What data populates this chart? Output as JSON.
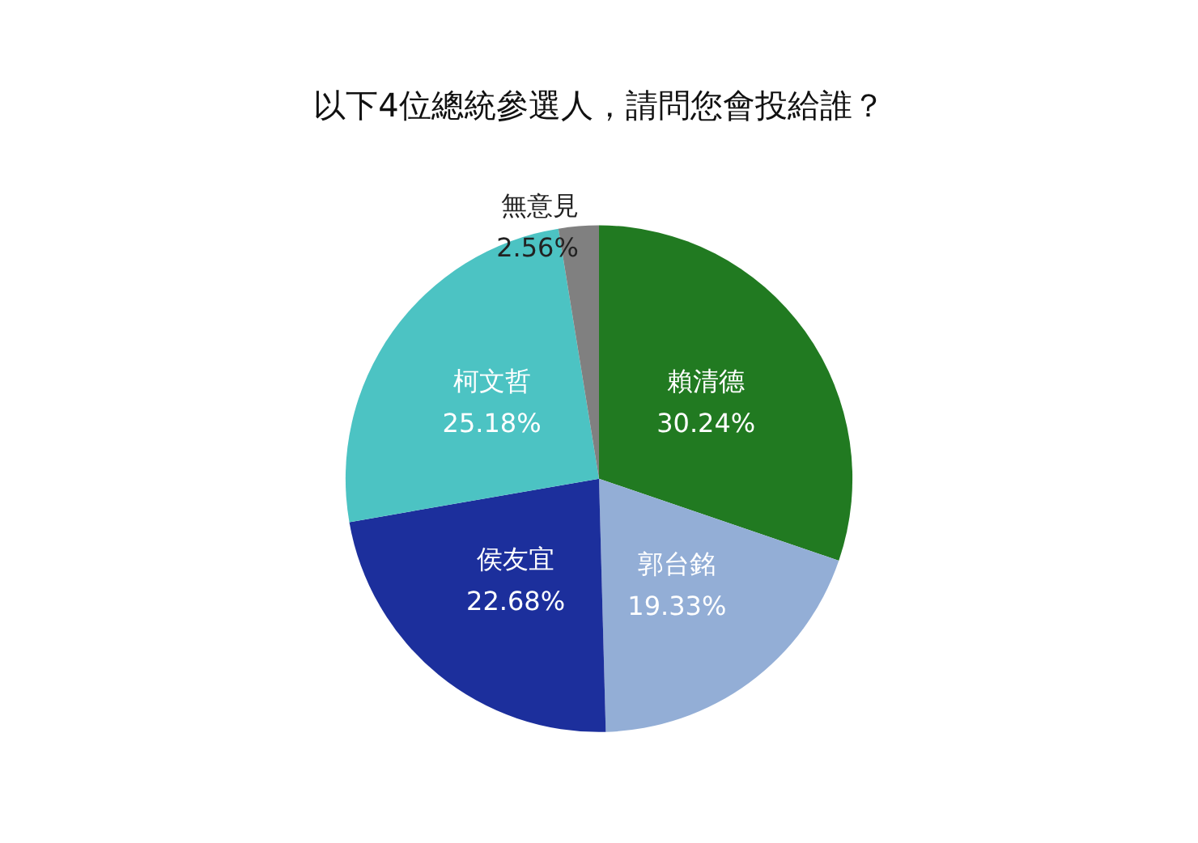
{
  "chart_data": {
    "type": "pie",
    "title": "以下4位總統參選人，請問您會投給誰？",
    "categories": [
      "賴清德",
      "郭台銘",
      "侯友宜",
      "柯文哲",
      "無意見"
    ],
    "values": [
      30.24,
      19.33,
      22.68,
      25.18,
      2.56
    ],
    "value_labels": [
      "30.24%",
      "19.33%",
      "22.68%",
      "25.18%",
      "2.56%"
    ],
    "colors": [
      "#217a21",
      "#93aed6",
      "#1c2f9c",
      "#4cc3c3",
      "#808080"
    ],
    "legend": false
  }
}
